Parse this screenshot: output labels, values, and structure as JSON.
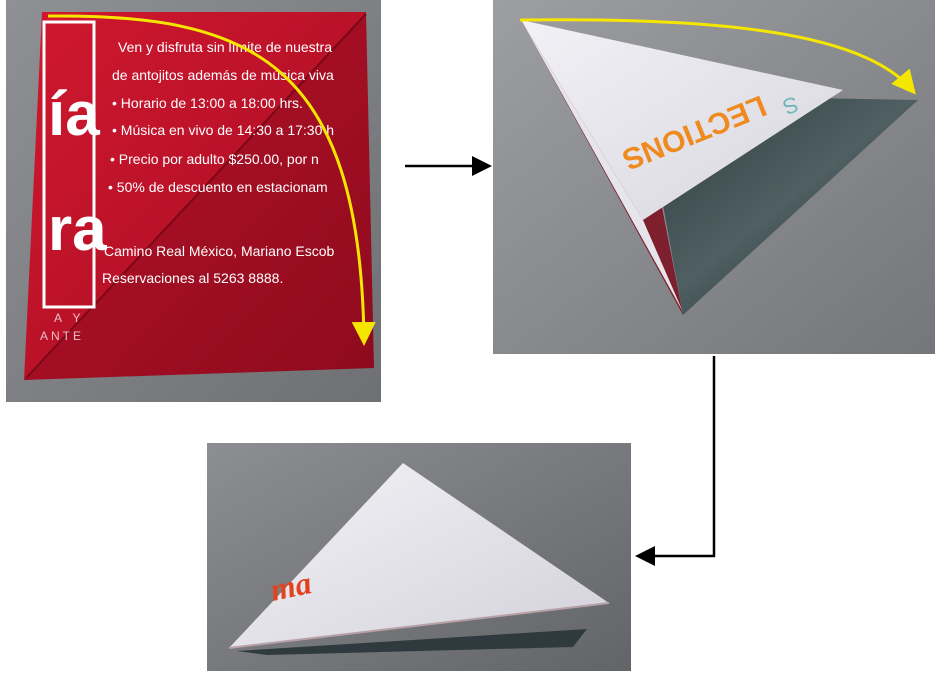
{
  "diagram": {
    "step1": {
      "flyer_lines": [
        "Ven y disfruta sin límite de nuestra",
        "de antojitos además de música viva",
        "• Horario de 13:00 a 18:00 hrs.",
        "• Música en vivo de 14:30 a 17:30 h",
        "• Precio por adulto $250.00, por n",
        "• 50% de descuento en estacionam",
        "Camino Real México, Mariano Escob",
        "Reservaciones al 5263 8888."
      ],
      "logo_letters": [
        "ía",
        "ra"
      ],
      "footer_letters": [
        "A  Y",
        "ANTE"
      ]
    },
    "step2": {
      "label": "LECTIONS",
      "side_label": "S"
    },
    "step3": {
      "label": "ma"
    },
    "colors": {
      "flyer_red": "#c8102e",
      "arrow_yellow": "#f5e600",
      "connector": "#000000",
      "background_gray": "#7b7d80",
      "accent_orange": "#f08a1c"
    }
  }
}
